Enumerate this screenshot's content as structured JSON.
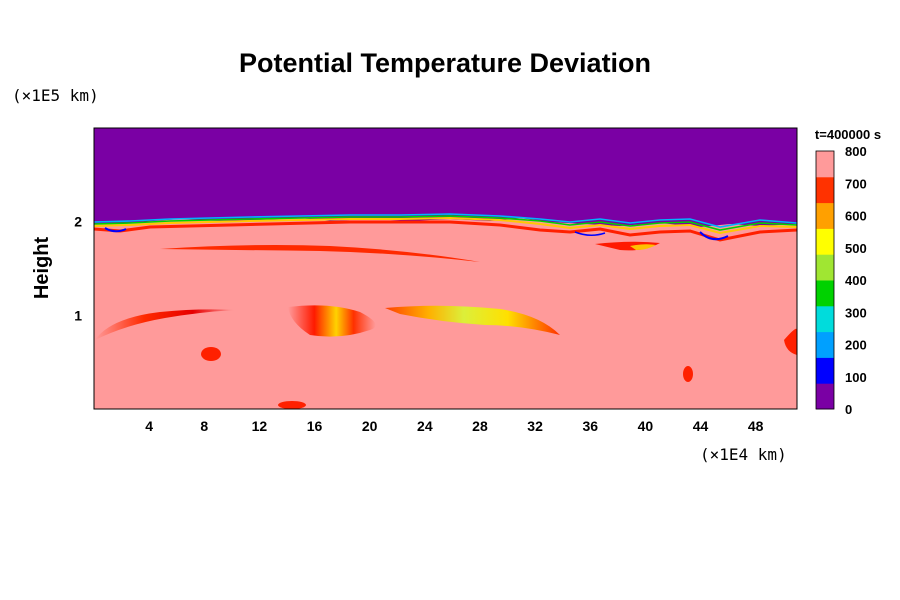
{
  "chart_data": {
    "type": "heatmap",
    "title": "Potential Temperature Deviation",
    "ylabel": "Height",
    "x_unit": "(×1E4 km)",
    "y_unit": "(×1E5 km)",
    "time_label": "t=400000 s",
    "xlim": [
      0,
      51
    ],
    "ylim": [
      0,
      3
    ],
    "x_ticks": [
      4,
      8,
      12,
      16,
      20,
      24,
      28,
      32,
      36,
      40,
      44,
      48
    ],
    "y_ticks": [
      1,
      2
    ],
    "colorbar": {
      "min": 0,
      "max": 800,
      "ticks": [
        0,
        100,
        200,
        300,
        400,
        500,
        600,
        700,
        800
      ],
      "colors": [
        "#7a00a4",
        "#0000ff",
        "#00a0ff",
        "#00dcdc",
        "#00d200",
        "#a0e632",
        "#ffff00",
        "#ffa000",
        "#ff3200",
        "#ff9a9a"
      ]
    },
    "fields": {
      "upper_layer_value": 0,
      "lower_layer_value": 800,
      "interface_height": 1.95,
      "features": [
        {
          "x": [
            0,
            10.5
          ],
          "y": [
            0.75,
            1.1
          ],
          "value": 700
        },
        {
          "x": [
            5,
            28
          ],
          "y": [
            1.6,
            1.8
          ],
          "value": 700
        },
        {
          "x": [
            14,
            20
          ],
          "y": [
            0.75,
            1.1
          ],
          "value": 550
        },
        {
          "x": [
            21,
            33
          ],
          "y": [
            0.8,
            1.1
          ],
          "value": 500
        },
        {
          "x": [
            37,
            41
          ],
          "y": [
            1.55,
            1.7
          ],
          "value": 650
        },
        {
          "x": [
            7.5,
            9.5
          ],
          "y": [
            0.45,
            0.6
          ],
          "value": 700
        },
        {
          "x": [
            43,
            44
          ],
          "y": [
            0.25,
            0.4
          ],
          "value": 700
        },
        {
          "x": [
            50,
            51
          ],
          "y": [
            0.6,
            0.9
          ],
          "value": 700
        }
      ]
    }
  }
}
